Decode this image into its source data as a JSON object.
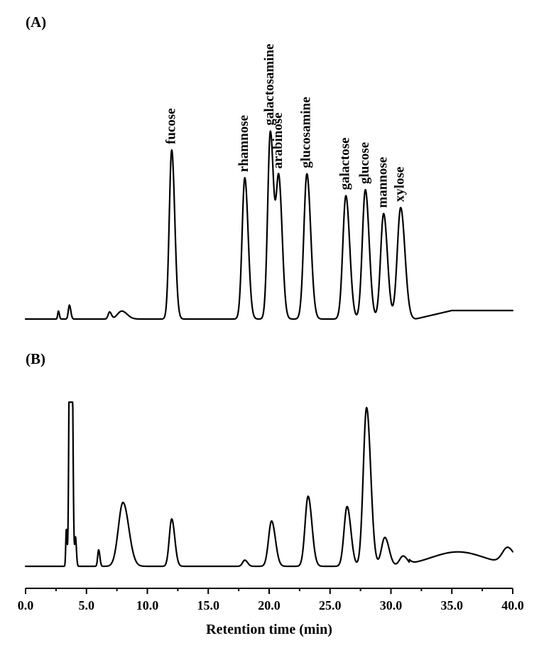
{
  "chart_data": {
    "type": "line",
    "xlabel": "Retention time (min)",
    "xlim": [
      0,
      40
    ],
    "x_ticks": [
      "0.0",
      "5.0",
      "10.0",
      "15.0",
      "20.0",
      "25.0",
      "30.0",
      "35.0",
      "40.0"
    ],
    "grid": false,
    "panels": [
      {
        "label": "(A)",
        "peaks": [
          {
            "name": "",
            "rt": 2.7,
            "height": 0.04,
            "width": 0.06
          },
          {
            "name": "",
            "rt": 3.6,
            "height": 0.07,
            "width": 0.09
          },
          {
            "name": "",
            "rt": 6.9,
            "height": 0.035,
            "width": 0.12
          },
          {
            "name": "",
            "rt": 7.9,
            "height": 0.04,
            "width": 0.35
          },
          {
            "name": "fucose",
            "rt": 12.0,
            "height": 0.85,
            "width": 0.2
          },
          {
            "name": "rhamnose",
            "rt": 18.0,
            "height": 0.71,
            "width": 0.22
          },
          {
            "name": "galactosamine",
            "rt": 20.1,
            "height": 0.94,
            "width": 0.22
          },
          {
            "name": "arabinose",
            "rt": 20.8,
            "height": 0.69,
            "width": 0.22
          },
          {
            "name": "glucosamine",
            "rt": 23.1,
            "height": 0.73,
            "width": 0.25
          },
          {
            "name": "galactose",
            "rt": 26.3,
            "height": 0.62,
            "width": 0.25
          },
          {
            "name": "glucose",
            "rt": 27.9,
            "height": 0.65,
            "width": 0.25
          },
          {
            "name": "mannose",
            "rt": 29.4,
            "height": 0.53,
            "width": 0.25
          },
          {
            "name": "xylose",
            "rt": 30.8,
            "height": 0.56,
            "width": 0.28
          }
        ]
      },
      {
        "label": "(B)",
        "peaks": [
          {
            "name": "",
            "rt": 3.35,
            "height": 0.18,
            "width": 0.05
          },
          {
            "name": "",
            "rt": 3.62,
            "height": 1.15,
            "width": 0.07
          },
          {
            "name": "",
            "rt": 3.8,
            "height": 1.15,
            "width": 0.07
          },
          {
            "name": "",
            "rt": 4.1,
            "height": 0.14,
            "width": 0.06
          },
          {
            "name": "",
            "rt": 6.0,
            "height": 0.08,
            "width": 0.08
          },
          {
            "name": "",
            "rt": 8.0,
            "height": 0.31,
            "width": 0.38
          },
          {
            "name": "",
            "rt": 12.0,
            "height": 0.23,
            "width": 0.2
          },
          {
            "name": "",
            "rt": 18.0,
            "height": 0.03,
            "width": 0.18
          },
          {
            "name": "",
            "rt": 20.2,
            "height": 0.22,
            "width": 0.25
          },
          {
            "name": "",
            "rt": 23.2,
            "height": 0.34,
            "width": 0.25
          },
          {
            "name": "",
            "rt": 26.4,
            "height": 0.29,
            "width": 0.25
          },
          {
            "name": "",
            "rt": 28.0,
            "height": 0.77,
            "width": 0.27
          },
          {
            "name": "",
            "rt": 29.5,
            "height": 0.14,
            "width": 0.28
          },
          {
            "name": "",
            "rt": 31.0,
            "height": 0.05,
            "width": 0.3
          },
          {
            "name": "",
            "rt": 39.6,
            "height": 0.08,
            "width": 0.45
          }
        ]
      }
    ]
  }
}
